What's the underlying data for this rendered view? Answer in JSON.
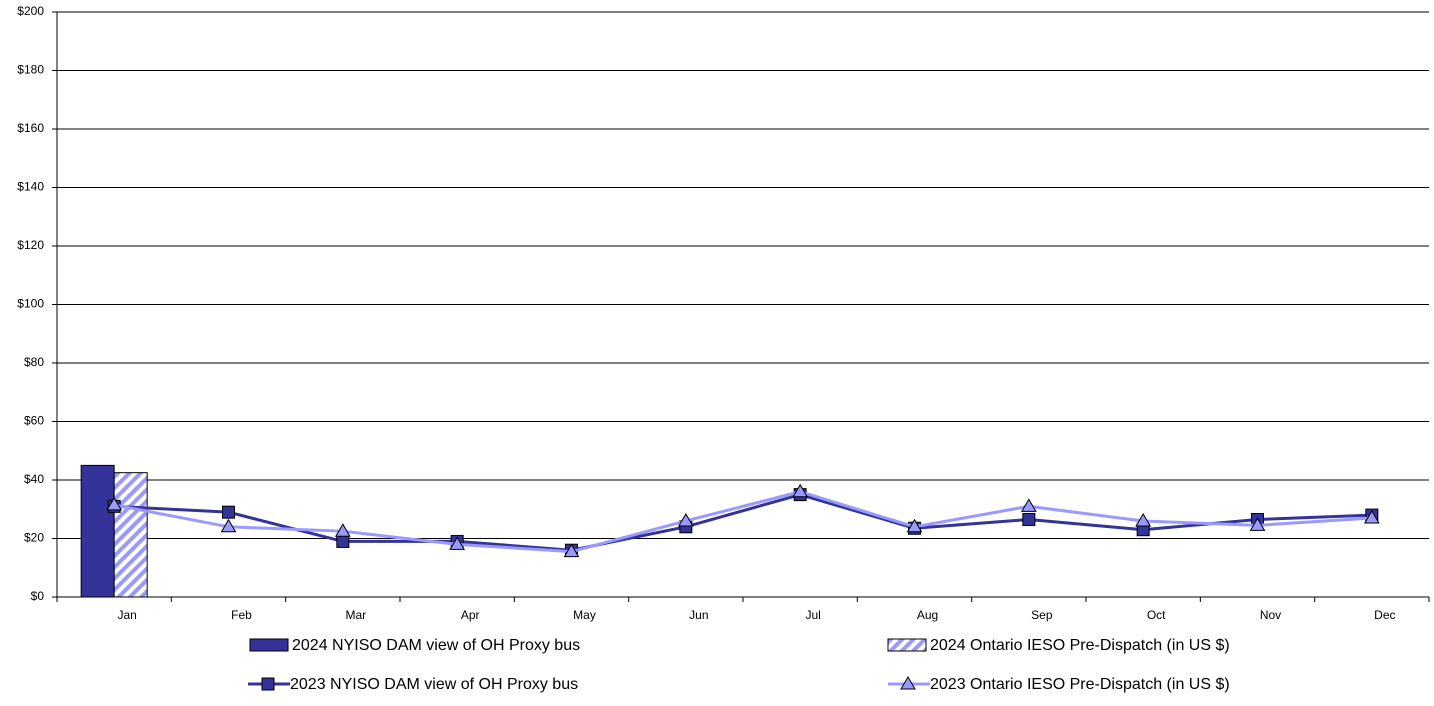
{
  "chart_data": {
    "type": "bar",
    "categories": [
      "Jan",
      "Feb",
      "Mar",
      "Apr",
      "May",
      "Jun",
      "Jul",
      "Aug",
      "Sep",
      "Oct",
      "Nov",
      "Dec"
    ],
    "series": [
      {
        "name": "2024 NYISO DAM view of OH Proxy bus",
        "type": "bar",
        "color": "#333399",
        "pattern": "solid",
        "values": [
          45,
          null,
          null,
          null,
          null,
          null,
          null,
          null,
          null,
          null,
          null,
          null
        ]
      },
      {
        "name": "2024 Ontario IESO Pre-Dispatch (in US $)",
        "type": "bar",
        "color": "#9999ff",
        "pattern": "hatch",
        "values": [
          42.5,
          null,
          null,
          null,
          null,
          null,
          null,
          null,
          null,
          null,
          null,
          null
        ]
      },
      {
        "name": "2023 NYISO DAM view of OH Proxy bus",
        "type": "line",
        "color": "#333399",
        "marker": "square",
        "values": [
          31,
          29,
          19,
          19,
          16,
          24,
          35,
          23.5,
          26.5,
          23,
          26.5,
          28
        ]
      },
      {
        "name": "2023 Ontario IESO Pre-Dispatch (in US $)",
        "type": "line",
        "color": "#9999ff",
        "marker": "triangle",
        "values": [
          31.5,
          24,
          22.5,
          18,
          15.5,
          26,
          36,
          24,
          31,
          26,
          24.5,
          27
        ]
      }
    ],
    "ylim": [
      0,
      200
    ],
    "yticks": [
      {
        "value": 0,
        "label": "$0"
      },
      {
        "value": 20,
        "label": "$20"
      },
      {
        "value": 40,
        "label": "$40"
      },
      {
        "value": 60,
        "label": "$60"
      },
      {
        "value": 80,
        "label": "$80"
      },
      {
        "value": 100,
        "label": "$100"
      },
      {
        "value": 120,
        "label": "$120"
      },
      {
        "value": 140,
        "label": "$140"
      },
      {
        "value": 160,
        "label": "$160"
      },
      {
        "value": 180,
        "label": "$180"
      },
      {
        "value": 200,
        "label": "$200"
      }
    ],
    "grid": true
  }
}
